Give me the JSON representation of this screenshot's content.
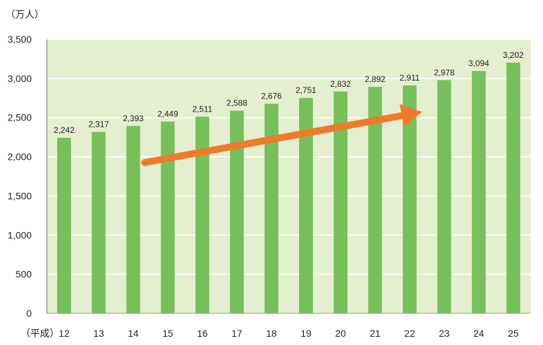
{
  "chart_data": {
    "type": "bar",
    "unit_label": "（万人）",
    "x_prefix": "（平成）",
    "categories": [
      "12",
      "13",
      "14",
      "15",
      "16",
      "17",
      "18",
      "19",
      "20",
      "21",
      "22",
      "23",
      "24",
      "25"
    ],
    "values": [
      2242,
      2317,
      2393,
      2449,
      2511,
      2588,
      2676,
      2751,
      2832,
      2892,
      2911,
      2978,
      3094,
      3202
    ],
    "value_labels": [
      "2,242",
      "2,317",
      "2,393",
      "2,449",
      "2,511",
      "2,588",
      "2,676",
      "2,751",
      "2,832",
      "2,892",
      "2,911",
      "2,978",
      "3,094",
      "3,202"
    ],
    "ylim": [
      0,
      3500
    ],
    "yticks": [
      0,
      500,
      1000,
      1500,
      2000,
      2500,
      3000,
      3500
    ],
    "ytick_labels": [
      "0",
      "500",
      "1,000",
      "1,500",
      "2,000",
      "2,500",
      "3,000",
      "3,500"
    ],
    "grid": true,
    "trend_arrow": true,
    "colors": {
      "bar": "#77bf5b",
      "plot_background": "#e4efcf",
      "gridline": "#ffffff",
      "axis": "#999999",
      "arrow": "#ee7a2b"
    }
  }
}
